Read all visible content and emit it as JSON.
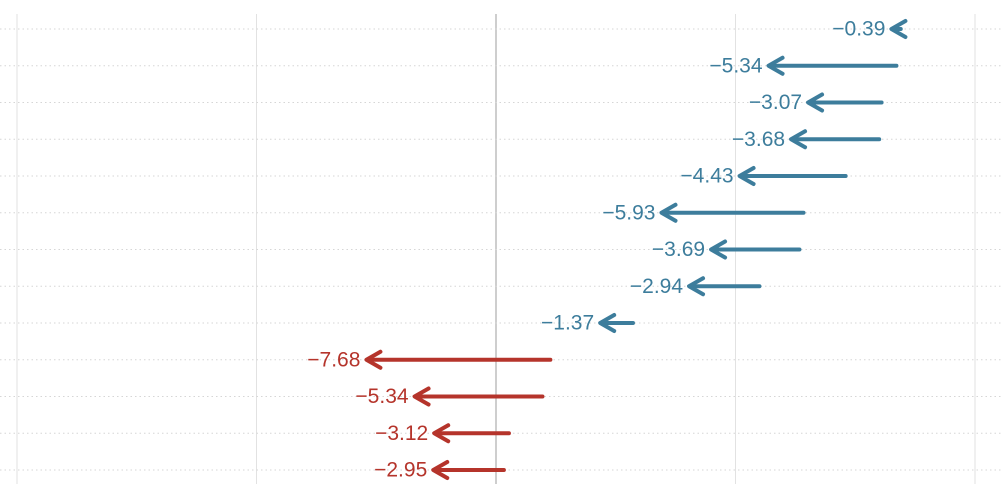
{
  "chart_data": {
    "type": "arrow",
    "title": "",
    "xlabel": "",
    "ylabel": "",
    "grid": {
      "vertical": true,
      "horizontal_dotted": true,
      "zero_line": true
    },
    "legend": "none",
    "colors": {
      "negative_group_1": "#3d7d9c",
      "negative_group_2": "#b5342b",
      "grid": "#e2e2e2",
      "zero_line": "#bdbdbd"
    },
    "rows": [
      {
        "start": 16.9,
        "end": 16.51,
        "change_label": "−0.39",
        "group": "negative_group_1"
      },
      {
        "start": 16.72,
        "end": 11.38,
        "change_label": "−5.34",
        "group": "negative_group_1"
      },
      {
        "start": 16.1,
        "end": 13.03,
        "change_label": "−3.07",
        "group": "negative_group_1"
      },
      {
        "start": 16.0,
        "end": 12.32,
        "change_label": "−3.68",
        "group": "negative_group_1"
      },
      {
        "start": 14.6,
        "end": 10.17,
        "change_label": "−4.43",
        "group": "negative_group_1"
      },
      {
        "start": 12.84,
        "end": 6.91,
        "change_label": "−5.93",
        "group": "negative_group_1"
      },
      {
        "start": 12.67,
        "end": 8.98,
        "change_label": "−3.69",
        "group": "negative_group_1"
      },
      {
        "start": 11.0,
        "end": 8.06,
        "change_label": "−2.94",
        "group": "negative_group_1"
      },
      {
        "start": 5.72,
        "end": 4.35,
        "change_label": "−1.37",
        "group": "negative_group_1"
      },
      {
        "start": 2.27,
        "end": -5.41,
        "change_label": "−7.68",
        "group": "negative_group_2"
      },
      {
        "start": 1.94,
        "end": -3.4,
        "change_label": "−5.34",
        "group": "negative_group_2"
      },
      {
        "start": 0.54,
        "end": -2.58,
        "change_label": "−3.12",
        "group": "negative_group_2"
      },
      {
        "start": 0.33,
        "end": -2.62,
        "change_label": "−2.95",
        "group": "negative_group_2"
      }
    ],
    "xlim": [
      -20,
      20
    ],
    "x_gridlines": [
      -20,
      -10,
      0,
      10,
      20
    ]
  }
}
